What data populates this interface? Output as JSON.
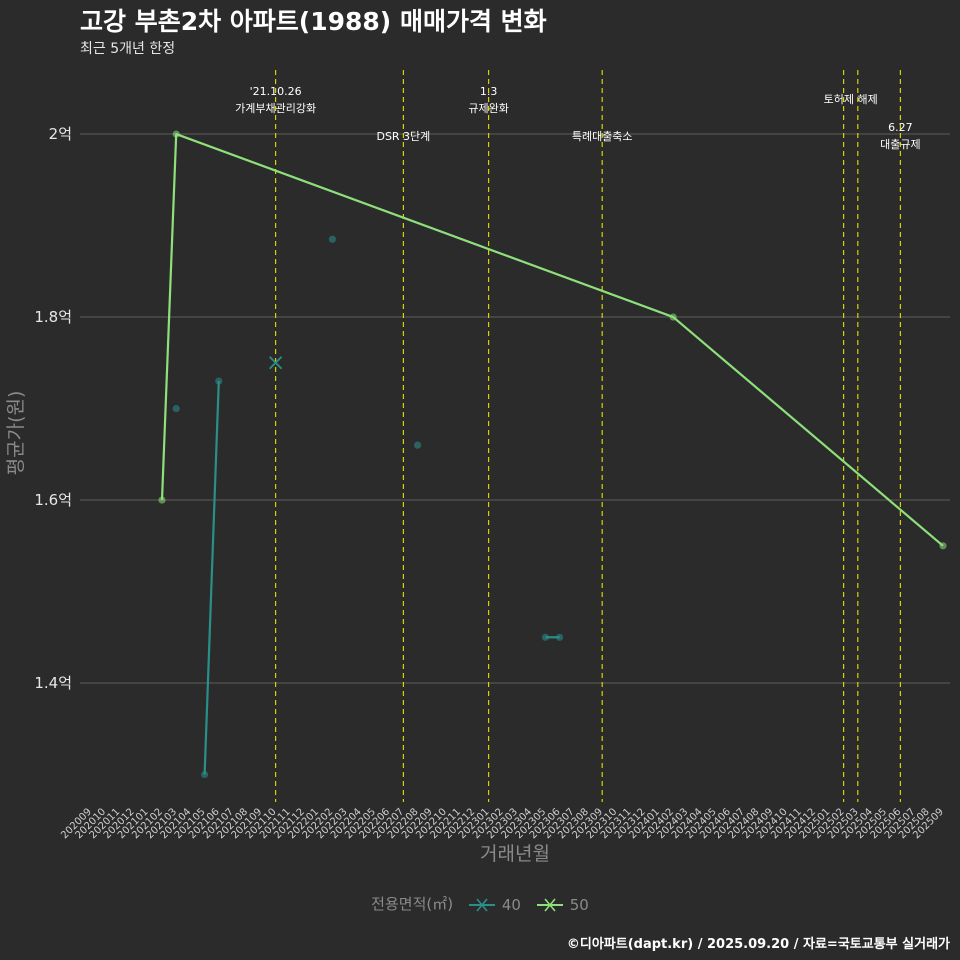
{
  "header": {
    "title": "고강 부촌2차 아파트(1988) 매매가격 변화",
    "subtitle": "최근 5개년 한정"
  },
  "legend": {
    "title": "전용면적(㎡)",
    "items": [
      {
        "label": "40",
        "color": "#2a8f8a"
      },
      {
        "label": "50",
        "color": "#8ee07a"
      }
    ]
  },
  "caption": "©디아파트(dapt.kr) / 2025.09.20 / 자료=국토교통부 실거래가",
  "chart_data": {
    "type": "line",
    "xlabel": "거래년월",
    "ylabel": "평균가(원)",
    "categories": [
      "202009",
      "202010",
      "202011",
      "202012",
      "202101",
      "202102",
      "202103",
      "202104",
      "202105",
      "202106",
      "202107",
      "202108",
      "202109",
      "202110",
      "202111",
      "202112",
      "202201",
      "202202",
      "202203",
      "202204",
      "202205",
      "202206",
      "202207",
      "202208",
      "202209",
      "202210",
      "202211",
      "202212",
      "202301",
      "202302",
      "202303",
      "202304",
      "202305",
      "202306",
      "202307",
      "202308",
      "202309",
      "202310",
      "202311",
      "202312",
      "202401",
      "202402",
      "202403",
      "202404",
      "202405",
      "202406",
      "202407",
      "202408",
      "202409",
      "202410",
      "202411",
      "202412",
      "202501",
      "202502",
      "202503",
      "202504",
      "202505",
      "202506",
      "202507",
      "202508",
      "202509"
    ],
    "ylim": [
      1.27,
      2.07
    ],
    "yticks": [
      1.4,
      1.6,
      1.8,
      2.0
    ],
    "ytick_labels": [
      "1.4억",
      "1.6억",
      "1.8억",
      "2억"
    ],
    "grid": true,
    "legend_position": "bottom",
    "series": [
      {
        "name": "40",
        "color": "#2a8f8a",
        "segments": [
          [
            {
              "x": "202103",
              "y": 1.7
            }
          ],
          [
            {
              "x": "202105",
              "y": 1.3
            },
            {
              "x": "202106",
              "y": 1.73
            }
          ],
          [
            {
              "x": "202110",
              "y": 1.75,
              "marker": "x"
            }
          ],
          [
            {
              "x": "202202",
              "y": 1.885
            }
          ],
          [
            {
              "x": "202208",
              "y": 1.66
            }
          ],
          [
            {
              "x": "202305",
              "y": 1.45
            },
            {
              "x": "202306",
              "y": 1.45
            }
          ]
        ]
      },
      {
        "name": "50",
        "color": "#8ee07a",
        "segments": [
          [
            {
              "x": "202102",
              "y": 1.6
            },
            {
              "x": "202103",
              "y": 2.0
            },
            {
              "x": "202402",
              "y": 1.8
            },
            {
              "x": "202509",
              "y": 1.55
            }
          ]
        ]
      }
    ],
    "events": [
      {
        "x": "202110",
        "lines": [
          "'21.10.26",
          "가계부채관리강화"
        ],
        "level": 0
      },
      {
        "x": "202207",
        "lines": [
          "DSR 3단계"
        ],
        "level": 2
      },
      {
        "x": "202301",
        "lines": [
          "1.3",
          "규제완화"
        ],
        "level": 0
      },
      {
        "x": "202309",
        "lines": [
          "특례대출축소"
        ],
        "level": 2
      },
      {
        "x": "202502",
        "lines": [
          "토허제 해제"
        ],
        "level": 1,
        "span_to": "202503"
      },
      {
        "x": "202503",
        "lines": [],
        "level": 1
      },
      {
        "x": "202506",
        "lines": [
          "6.27",
          "대출규제"
        ],
        "level": 3
      }
    ]
  }
}
